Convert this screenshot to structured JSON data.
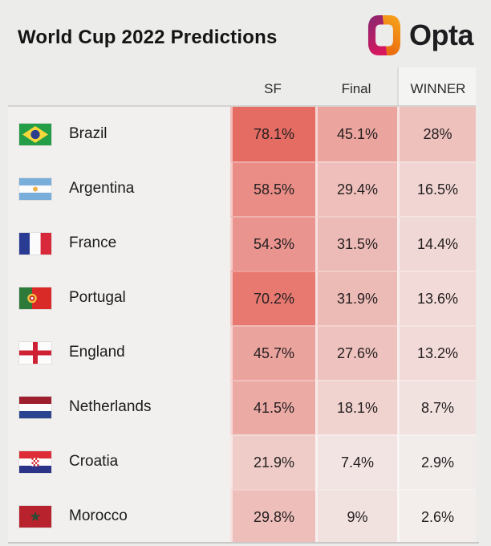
{
  "header": {
    "title": "World Cup 2022 Predictions",
    "brand": "Opta",
    "logo_icon": "opta-ring-icon",
    "logo_colors": {
      "purple_top": "#7c2a72",
      "magenta_bottom": "#d8175e",
      "orange_top": "#f7a51d",
      "orange_bottom": "#e8650e"
    }
  },
  "table": {
    "columns": [
      "SF",
      "Final",
      "WINNER"
    ],
    "rows": [
      {
        "team": "Brazil",
        "flag": "brazil",
        "cells": [
          "78.1%",
          "45.1%",
          "28%"
        ]
      },
      {
        "team": "Argentina",
        "flag": "argentina",
        "cells": [
          "58.5%",
          "29.4%",
          "16.5%"
        ]
      },
      {
        "team": "France",
        "flag": "france",
        "cells": [
          "54.3%",
          "31.5%",
          "14.4%"
        ]
      },
      {
        "team": "Portugal",
        "flag": "portugal",
        "cells": [
          "70.2%",
          "31.9%",
          "13.6%"
        ]
      },
      {
        "team": "England",
        "flag": "england",
        "cells": [
          "45.7%",
          "27.6%",
          "13.2%"
        ]
      },
      {
        "team": "Netherlands",
        "flag": "netherlands",
        "cells": [
          "41.5%",
          "18.1%",
          "8.7%"
        ]
      },
      {
        "team": "Croatia",
        "flag": "croatia",
        "cells": [
          "21.9%",
          "7.4%",
          "2.9%"
        ]
      },
      {
        "team": "Morocco",
        "flag": "morocco",
        "cells": [
          "29.8%",
          "9%",
          "2.6%"
        ]
      }
    ]
  },
  "chart_data": {
    "type": "heatmap",
    "title": "World Cup 2022 Predictions",
    "columns": [
      "SF",
      "Final",
      "WINNER"
    ],
    "categories": [
      "Brazil",
      "Argentina",
      "France",
      "Portugal",
      "England",
      "Netherlands",
      "Croatia",
      "Morocco"
    ],
    "series": [
      {
        "name": "SF",
        "values": [
          78.1,
          58.5,
          54.3,
          70.2,
          45.7,
          41.5,
          21.9,
          29.8
        ]
      },
      {
        "name": "Final",
        "values": [
          45.1,
          29.4,
          31.5,
          31.9,
          27.6,
          18.1,
          7.4,
          9
        ]
      },
      {
        "name": "WINNER",
        "values": [
          28,
          16.5,
          14.4,
          13.6,
          13.2,
          8.7,
          2.9,
          2.6
        ]
      }
    ],
    "value_unit": "%",
    "heat_base_color": "#e46056",
    "heat_background_color": "#f3f1f0",
    "heat_scale_max": 85,
    "legend_position": "none",
    "grid": false
  },
  "colors": {
    "page_bg": "#ececeb",
    "row_bg": "#f1f0ef",
    "winner_header_bg": "#f4f4f3",
    "header_rule": "#d4d2d1",
    "bottom_rule": "#c9c8c7",
    "title_text": "#141414",
    "value_text": "#241f20"
  }
}
